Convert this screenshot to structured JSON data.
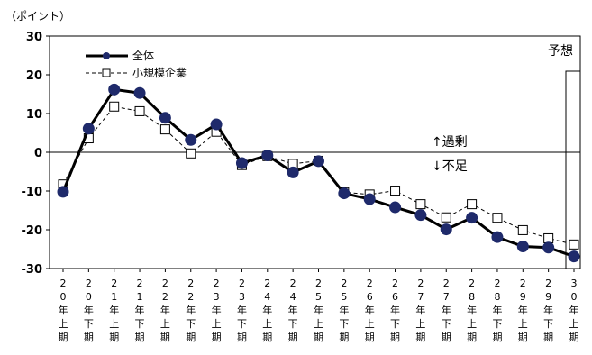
{
  "chart_data": {
    "type": "line",
    "unit_label": "（ポイント）",
    "ylim": [
      -30,
      30
    ],
    "yticks": [
      30,
      20,
      10,
      0,
      -10,
      -20,
      -30
    ],
    "grid": false,
    "legend_position": "top-left",
    "categories": [
      [
        "2",
        "0",
        "年",
        "上",
        "期"
      ],
      [
        "2",
        "0",
        "年",
        "下",
        "期"
      ],
      [
        "2",
        "1",
        "年",
        "上",
        "期"
      ],
      [
        "2",
        "1",
        "年",
        "下",
        "期"
      ],
      [
        "2",
        "2",
        "年",
        "上",
        "期"
      ],
      [
        "2",
        "2",
        "年",
        "下",
        "期"
      ],
      [
        "2",
        "3",
        "年",
        "上",
        "期"
      ],
      [
        "2",
        "3",
        "年",
        "下",
        "期"
      ],
      [
        "2",
        "4",
        "年",
        "上",
        "期"
      ],
      [
        "2",
        "4",
        "年",
        "下",
        "期"
      ],
      [
        "2",
        "5",
        "年",
        "上",
        "期"
      ],
      [
        "2",
        "5",
        "年",
        "下",
        "期"
      ],
      [
        "2",
        "6",
        "年",
        "上",
        "期"
      ],
      [
        "2",
        "6",
        "年",
        "下",
        "期"
      ],
      [
        "2",
        "7",
        "年",
        "上",
        "期"
      ],
      [
        "2",
        "7",
        "年",
        "下",
        "期"
      ],
      [
        "2",
        "8",
        "年",
        "上",
        "期"
      ],
      [
        "2",
        "8",
        "年",
        "下",
        "期"
      ],
      [
        "2",
        "9",
        "年",
        "上",
        "期"
      ],
      [
        "2",
        "9",
        "年",
        "下",
        "期"
      ],
      [
        "3",
        "0",
        "年",
        "上",
        "期"
      ]
    ],
    "series": [
      {
        "name": "全体",
        "color": "#1f2a6b",
        "line_style": "solid",
        "marker": "filled-circle",
        "values": [
          -10.2,
          6.1,
          16.2,
          15.3,
          8.9,
          3.2,
          7.2,
          -2.8,
          -0.8,
          -5.2,
          -2.3,
          -10.6,
          -12.1,
          -14.2,
          -16.2,
          -19.9,
          -16.9,
          -21.9,
          -24.3,
          -24.6,
          -26.9
        ]
      },
      {
        "name": "小規模企業",
        "color": "#000000",
        "line_style": "dashed",
        "marker": "open-square",
        "values": [
          -8.3,
          3.6,
          11.8,
          10.6,
          5.9,
          -0.3,
          5.3,
          -3.3,
          -1.0,
          -3.0,
          -2.2,
          -10.3,
          -10.9,
          -9.9,
          -13.4,
          -16.8,
          -13.4,
          -16.9,
          -20.1,
          -22.2,
          -23.8
        ]
      }
    ],
    "annotations": {
      "surplus": "↑過剰",
      "shortage": "↓不足",
      "forecast": "予想"
    }
  }
}
